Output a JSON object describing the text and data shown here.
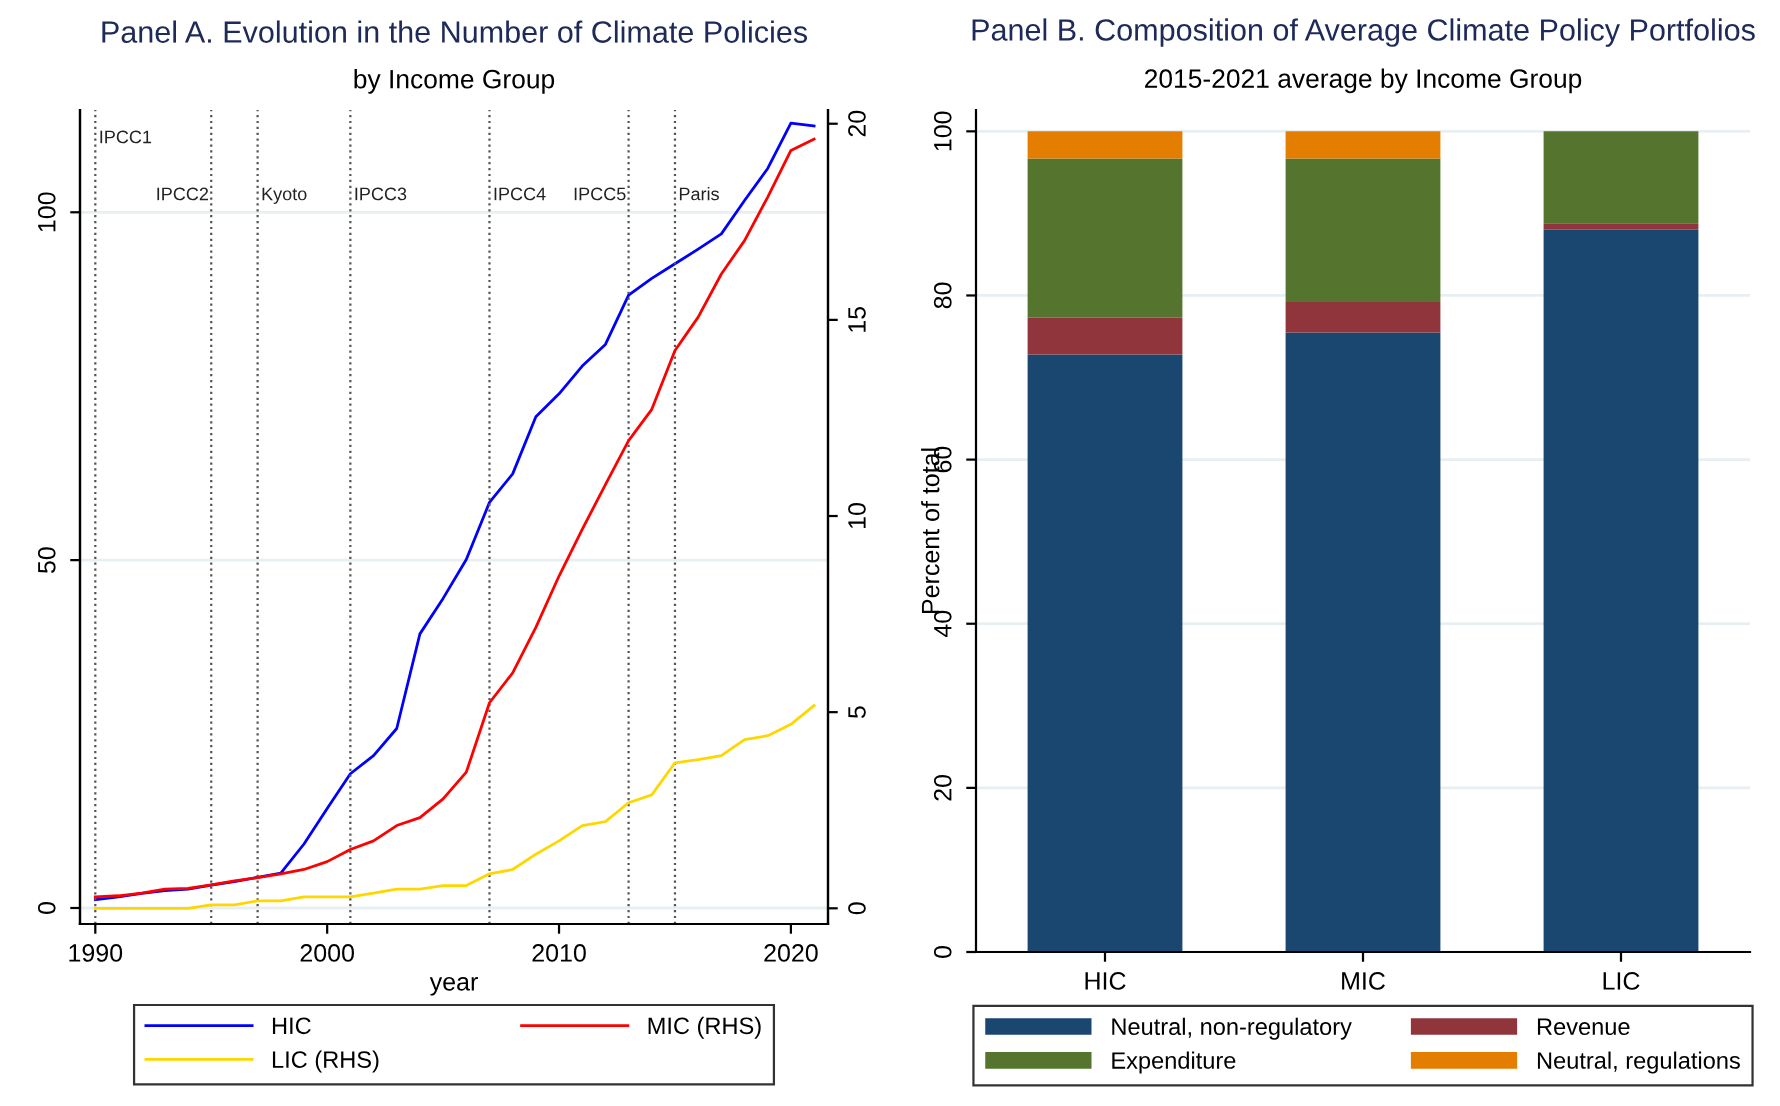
{
  "chart_data": [
    {
      "type": "line",
      "title": "Panel A. Evolution in the Number of Climate Policies",
      "subtitle": "by Income Group",
      "xlabel": "year",
      "x": [
        1990,
        1991,
        1992,
        1993,
        1994,
        1995,
        1996,
        1997,
        1998,
        1999,
        2000,
        2001,
        2002,
        2003,
        2004,
        2005,
        2006,
        2007,
        2008,
        2009,
        2010,
        2011,
        2012,
        2013,
        2014,
        2015,
        2016,
        2017,
        2018,
        2019,
        2020,
        2021
      ],
      "series": [
        {
          "name": "HIC",
          "color": "#0000ff",
          "values": [
            1.2,
            1.6,
            2.1,
            2.5,
            2.7,
            3.3,
            3.8,
            4.4,
            5.0,
            9.2,
            14.3,
            19.3,
            21.9,
            25.8,
            39.4,
            44.5,
            50.1,
            58.3,
            62.4,
            70.6,
            73.9,
            77.9,
            81.0,
            88.1,
            90.5,
            92.6,
            94.7,
            96.9,
            101.7,
            106.3,
            112.8,
            112.4
          ]
        },
        {
          "name": "MIC (RHS)",
          "color": "#ff0000",
          "axis": "y2",
          "values": [
            0.29,
            0.32,
            0.39,
            0.49,
            0.51,
            0.6,
            0.7,
            0.78,
            0.88,
            0.99,
            1.19,
            1.5,
            1.72,
            2.11,
            2.31,
            2.79,
            3.47,
            5.24,
            6.0,
            7.16,
            8.47,
            9.66,
            10.8,
            11.92,
            12.72,
            14.22,
            15.07,
            16.17,
            17.02,
            18.13,
            19.32,
            19.61
          ]
        },
        {
          "name": "LIC (RHS)",
          "color": "#ffd700",
          "axis": "y2",
          "values": [
            0,
            0,
            0,
            0,
            0,
            0.09,
            0.09,
            0.19,
            0.19,
            0.29,
            0.29,
            0.29,
            0.39,
            0.49,
            0.49,
            0.58,
            0.58,
            0.88,
            0.99,
            1.38,
            1.72,
            2.11,
            2.21,
            2.69,
            2.89,
            3.71,
            3.79,
            3.89,
            4.3,
            4.4,
            4.69,
            5.17
          ]
        }
      ],
      "xlim": [
        1989.34,
        2021.6
      ],
      "xticks": [
        1990,
        2000,
        2010,
        2020
      ],
      "ylim": [
        -2.3,
        114.7
      ],
      "yticks": [
        0,
        50,
        100
      ],
      "y2lim": [
        -0.4,
        20.35
      ],
      "y2ticks": [
        0,
        5,
        10,
        15,
        20
      ],
      "ref_lines": [
        {
          "axis": "x",
          "value": 1990,
          "label": "IPCC1",
          "line_style": "dotted"
        },
        {
          "axis": "x",
          "value": 1995,
          "label": "IPCC2",
          "line_style": "dotted"
        },
        {
          "axis": "x",
          "value": 1997,
          "label": "Kyoto",
          "line_style": "dotted"
        },
        {
          "axis": "x",
          "value": 2001,
          "label": "IPCC3",
          "line_style": "dotted"
        },
        {
          "axis": "x",
          "value": 2007,
          "label": "IPCC4",
          "line_style": "dotted"
        },
        {
          "axis": "x",
          "value": 2013,
          "label": "IPCC5",
          "line_style": "dotted"
        },
        {
          "axis": "x",
          "value": 2015,
          "label": "Paris",
          "line_style": "dotted"
        }
      ],
      "grid": "y",
      "legend": "bottom"
    },
    {
      "type": "bar",
      "stacked": true,
      "title": "Panel B. Composition of Average Climate Policy Portfolios",
      "subtitle": "2015-2021 average by Income Group",
      "ylabel": "Percent of total",
      "categories": [
        "HIC",
        "MIC",
        "LIC"
      ],
      "series": [
        {
          "name": "Neutral, non-regulatory",
          "color": "#1a476f",
          "values": [
            72.8,
            75.5,
            88.0
          ]
        },
        {
          "name": "Revenue",
          "color": "#90353b",
          "values": [
            4.5,
            3.7,
            0.8
          ]
        },
        {
          "name": "Expenditure",
          "color": "#55752f",
          "values": [
            19.4,
            17.5,
            11.2
          ]
        },
        {
          "name": "Neutral, regulations",
          "color": "#e37e00",
          "values": [
            3.3,
            3.3,
            0
          ]
        }
      ],
      "ylim": [
        0,
        102.6
      ],
      "yticks": [
        0,
        20,
        40,
        60,
        80,
        100
      ],
      "grid": "y",
      "legend": "bottom"
    }
  ]
}
